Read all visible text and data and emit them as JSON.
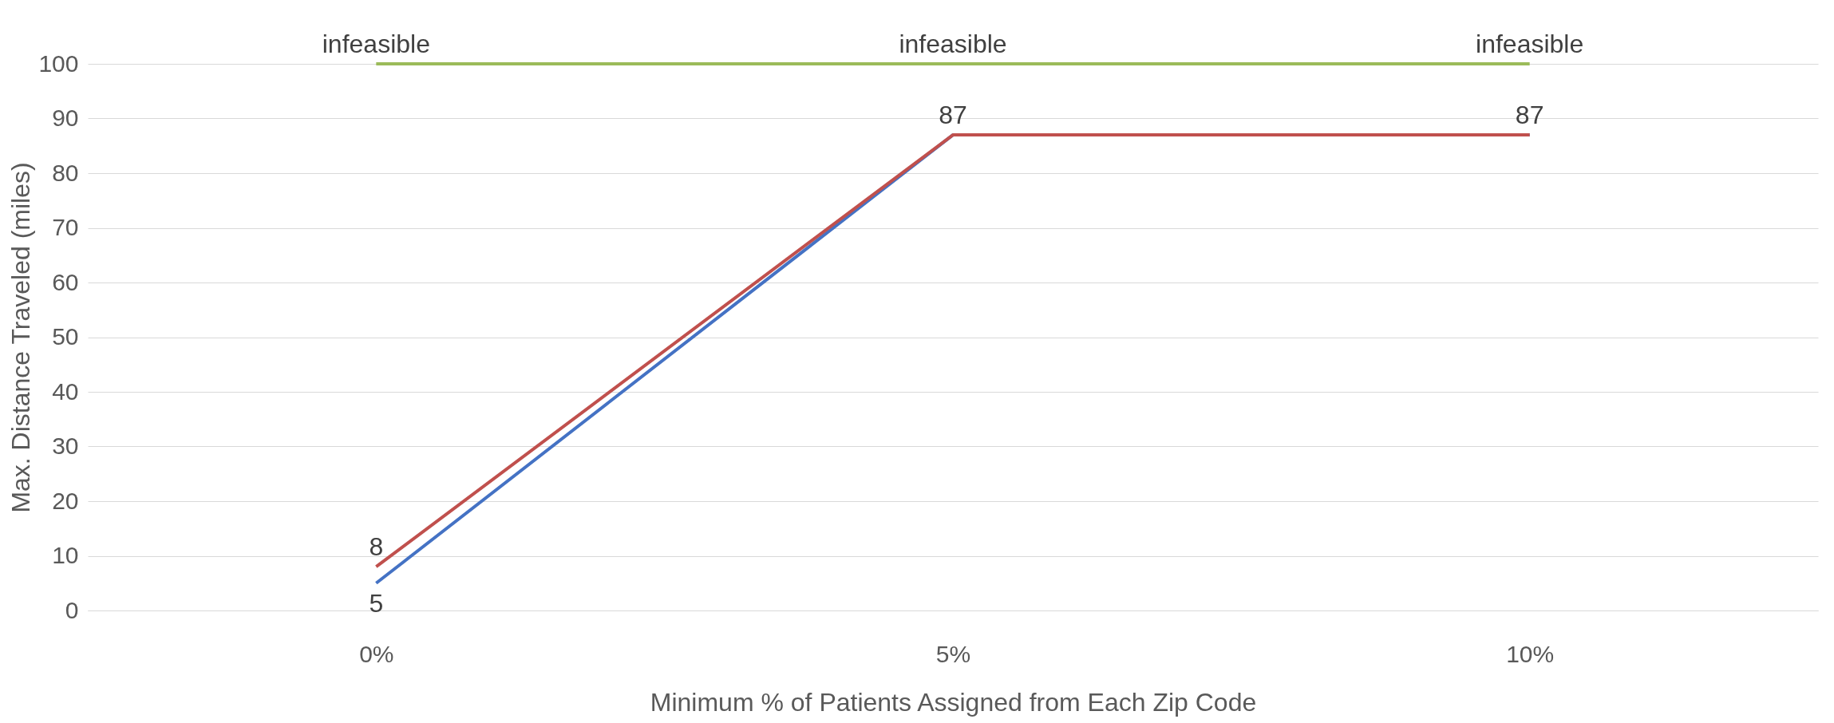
{
  "chart_data": {
    "type": "line",
    "xlabel": "Minimum % of Patients Assigned from Each Zip Code",
    "ylabel": "Max. Distance Traveled (miles)",
    "categories": [
      "0%",
      "5%",
      "10%"
    ],
    "series": [
      {
        "color": "#4472c4",
        "values": [
          5,
          87,
          87
        ],
        "value_labels": [
          "5",
          null,
          null
        ]
      },
      {
        "color": "#c0504d",
        "values": [
          8,
          87,
          87
        ],
        "value_labels": [
          "8",
          "87",
          "87"
        ]
      },
      {
        "color": "#9bbb59",
        "values": [
          100,
          100,
          100
        ],
        "value_labels": [
          "infeasible",
          "infeasible",
          "infeasible"
        ]
      }
    ],
    "ylim": [
      0,
      100
    ],
    "yticks": [
      0,
      10,
      20,
      30,
      40,
      50,
      60,
      70,
      80,
      90,
      100
    ],
    "grid": "y",
    "marker": "none",
    "line_style": "solid"
  }
}
